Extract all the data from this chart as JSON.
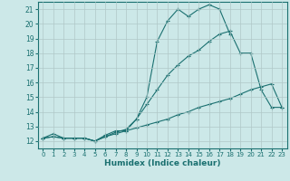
{
  "background_color": "#cce8e8",
  "grid_color": "#b0c8c8",
  "line_color": "#1a7070",
  "xlabel": "Humidex (Indice chaleur)",
  "xlim": [
    -0.5,
    23.5
  ],
  "ylim": [
    11.5,
    21.5
  ],
  "yticks": [
    12,
    13,
    14,
    15,
    16,
    17,
    18,
    19,
    20,
    21
  ],
  "xticks": [
    0,
    1,
    2,
    3,
    4,
    5,
    6,
    7,
    8,
    9,
    10,
    11,
    12,
    13,
    14,
    15,
    16,
    17,
    18,
    19,
    20,
    21,
    22,
    23
  ],
  "curve1_x": [
    0,
    1,
    2,
    3,
    4,
    5,
    6,
    7,
    8,
    9,
    10,
    11,
    12,
    13,
    14,
    15,
    16,
    17,
    18,
    19,
    20,
    21,
    22,
    23
  ],
  "curve1_y": [
    12.2,
    12.5,
    12.2,
    12.2,
    12.2,
    12.0,
    12.4,
    12.7,
    12.7,
    13.5,
    15.0,
    18.8,
    20.2,
    21.0,
    20.5,
    21.0,
    21.3,
    21.0,
    19.3,
    null,
    null,
    null,
    null,
    null
  ],
  "curve2_x": [
    0,
    1,
    2,
    3,
    4,
    5,
    6,
    7,
    8,
    9,
    10,
    11,
    12,
    13,
    14,
    15,
    16,
    17,
    18,
    19,
    20,
    21,
    22,
    23
  ],
  "curve2_y": [
    12.2,
    12.3,
    12.2,
    12.2,
    12.2,
    12.0,
    12.3,
    12.6,
    12.8,
    13.5,
    14.5,
    15.5,
    16.5,
    17.2,
    17.8,
    18.2,
    18.8,
    19.3,
    19.5,
    18.0,
    18.0,
    15.5,
    14.3,
    14.3
  ],
  "curve3_x": [
    0,
    1,
    2,
    3,
    4,
    5,
    6,
    7,
    8,
    9,
    10,
    11,
    12,
    13,
    14,
    15,
    16,
    17,
    18,
    19,
    20,
    21,
    22,
    23
  ],
  "curve3_y": [
    12.2,
    12.3,
    12.2,
    12.2,
    12.2,
    12.0,
    12.3,
    12.5,
    12.7,
    12.9,
    13.1,
    13.3,
    13.5,
    13.8,
    14.0,
    14.3,
    14.5,
    14.7,
    14.9,
    15.2,
    15.5,
    15.7,
    15.9,
    14.3
  ]
}
